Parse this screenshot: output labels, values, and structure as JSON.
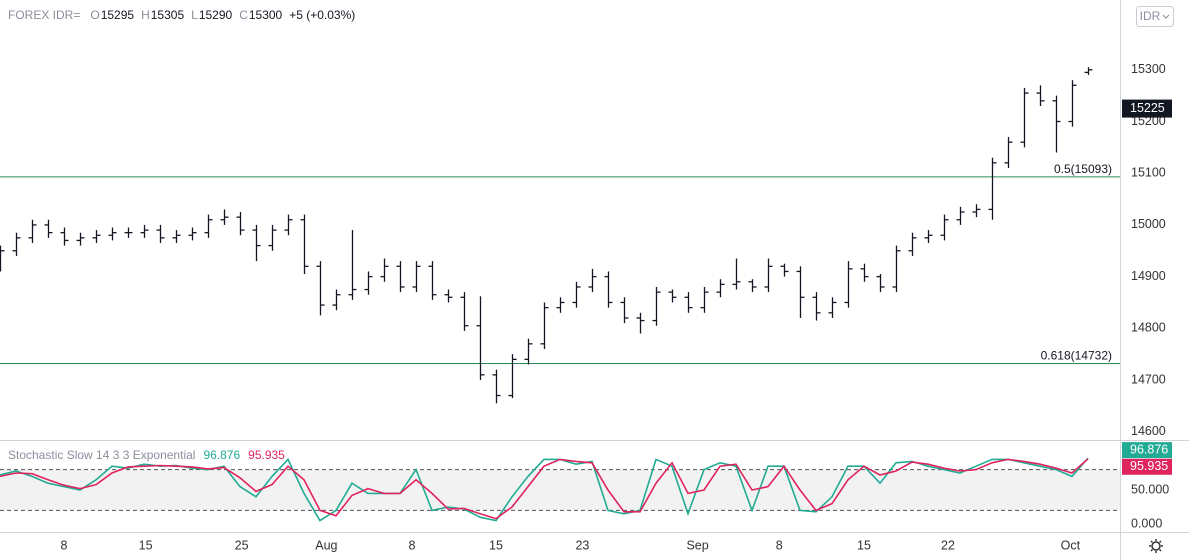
{
  "chart_data": [
    {
      "type": "ohlc",
      "title": "FOREX IDR=",
      "ohlc_labels": [
        {
          "label": "O",
          "value": 15295
        },
        {
          "label": "H",
          "value": 15305
        },
        {
          "label": "L",
          "value": 15290
        },
        {
          "label": "C",
          "value": 15300
        }
      ],
      "change": "+5 (+0.03%)",
      "color": "#131722",
      "xlim": [
        0,
        70
      ],
      "ylim": [
        14584,
        15435
      ],
      "yticks": [
        14600,
        14700,
        14800,
        14900,
        15000,
        15100,
        15200,
        15300
      ],
      "price_marker": 15225,
      "levels": [
        {
          "label": "0.5(15093)",
          "value": 15093,
          "color": "#2e8b57"
        },
        {
          "label": "0.618(14732)",
          "value": 14732,
          "color": "#2e8b57"
        }
      ],
      "open": [
        14940,
        14950,
        14975,
        15000,
        14985,
        14970,
        14975,
        14980,
        14985,
        14985,
        14990,
        14975,
        14980,
        14985,
        15010,
        15015,
        14990,
        14960,
        14990,
        15010,
        14920,
        14845,
        14865,
        14875,
        14900,
        14920,
        14880,
        14920,
        14865,
        14860,
        14805,
        14710,
        14670,
        14740,
        14770,
        14840,
        14850,
        14880,
        14900,
        14850,
        14820,
        14815,
        14870,
        14860,
        14840,
        14870,
        14885,
        14890,
        14880,
        14920,
        14910,
        14860,
        14830,
        14850,
        14915,
        14900,
        14880,
        14950,
        14975,
        14980,
        15010,
        15025,
        15030,
        15120,
        15160,
        15255,
        15240,
        15200,
        15295
      ],
      "high": [
        14960,
        14985,
        15010,
        15010,
        14995,
        14985,
        14990,
        14995,
        14995,
        15000,
        15000,
        14990,
        14995,
        15020,
        15030,
        15025,
        15000,
        15000,
        15020,
        15020,
        14930,
        14875,
        14990,
        14910,
        14935,
        14930,
        14930,
        14930,
        14875,
        14870,
        14862,
        14720,
        14750,
        14780,
        14850,
        14860,
        14890,
        14915,
        14910,
        14860,
        14830,
        14880,
        14875,
        14870,
        14880,
        14895,
        14935,
        14895,
        14935,
        14925,
        14920,
        14870,
        14860,
        14930,
        14925,
        14905,
        14960,
        14985,
        14990,
        15020,
        15035,
        15040,
        15130,
        15170,
        15265,
        15270,
        15250,
        15280,
        15305
      ],
      "low": [
        14910,
        14940,
        14965,
        14975,
        14960,
        14960,
        14965,
        14970,
        14975,
        14975,
        14965,
        14965,
        14970,
        14975,
        15000,
        14980,
        14930,
        14950,
        14980,
        14905,
        14825,
        14835,
        14855,
        14865,
        14890,
        14870,
        14870,
        14855,
        14850,
        14795,
        14700,
        14655,
        14665,
        14730,
        14760,
        14830,
        14840,
        14870,
        14840,
        14810,
        14790,
        14805,
        14850,
        14830,
        14830,
        14860,
        14875,
        14870,
        14870,
        14900,
        14820,
        14815,
        14820,
        14840,
        14890,
        14870,
        14870,
        14940,
        14965,
        14970,
        15000,
        15015,
        15010,
        15110,
        15150,
        15230,
        15140,
        15190,
        15290
      ],
      "close": [
        14950,
        14975,
        15000,
        14985,
        14970,
        14975,
        14980,
        14985,
        14985,
        14990,
        14975,
        14980,
        14985,
        15010,
        15015,
        14990,
        14960,
        14990,
        15010,
        14920,
        14845,
        14865,
        14875,
        14900,
        14920,
        14880,
        14920,
        14865,
        14860,
        14805,
        14710,
        14670,
        14740,
        14770,
        14840,
        14850,
        14880,
        14900,
        14850,
        14820,
        14815,
        14870,
        14860,
        14840,
        14870,
        14885,
        14890,
        14880,
        14920,
        14910,
        14860,
        14830,
        14850,
        14915,
        14900,
        14880,
        14950,
        14975,
        14980,
        15010,
        15025,
        15030,
        15120,
        15160,
        15255,
        15240,
        15200,
        15270,
        15300
      ]
    },
    {
      "type": "line",
      "title": "Stochastic Slow 14 3 3 Exponential",
      "xlim": [
        0,
        70
      ],
      "ylim": [
        -11.76,
        122.06
      ],
      "yticks": [
        {
          "value": 0,
          "label": "0.000"
        },
        {
          "value": 50,
          "label": "50.000"
        }
      ],
      "bands": [
        20,
        80
      ],
      "xticks": [
        {
          "value": 4,
          "label": "8"
        },
        {
          "value": 9.1,
          "label": "15"
        },
        {
          "value": 15.1,
          "label": "25"
        },
        {
          "value": 20.4,
          "label": "Aug"
        },
        {
          "value": 25.75,
          "label": "8"
        },
        {
          "value": 31,
          "label": "15"
        },
        {
          "value": 36.4,
          "label": "23"
        },
        {
          "value": 43.6,
          "label": "Sep"
        },
        {
          "value": 48.7,
          "label": "8"
        },
        {
          "value": 54,
          "label": "15"
        },
        {
          "value": 59.25,
          "label": "22"
        },
        {
          "value": 66.9,
          "label": "Oct"
        }
      ],
      "series": [
        {
          "color": "#22ab94",
          "values": [
            72,
            78,
            70,
            60,
            55,
            50,
            65,
            85,
            82,
            88,
            85,
            86,
            82,
            80,
            85,
            55,
            40,
            70,
            95,
            45,
            5,
            20,
            60,
            45,
            45,
            45,
            80,
            20,
            25,
            22,
            10,
            5,
            40,
            70,
            95,
            95,
            88,
            92,
            20,
            15,
            20,
            95,
            85,
            15,
            80,
            90,
            85,
            20,
            85,
            85,
            20,
            18,
            40,
            85,
            85,
            60,
            90,
            92,
            85,
            80,
            75,
            85,
            95,
            95,
            90,
            85,
            80,
            70,
            96.876
          ]
        },
        {
          "color": "#e0245e",
          "values": [
            70,
            75,
            74,
            65,
            57,
            52,
            58,
            75,
            84,
            85,
            86,
            85,
            84,
            81,
            83,
            68,
            48,
            58,
            85,
            65,
            20,
            12,
            42,
            52,
            45,
            45,
            65,
            45,
            22,
            23,
            15,
            8,
            25,
            55,
            85,
            95,
            92,
            90,
            50,
            18,
            18,
            60,
            90,
            45,
            50,
            85,
            88,
            50,
            55,
            85,
            50,
            20,
            30,
            65,
            85,
            72,
            78,
            91,
            88,
            82,
            78,
            80,
            90,
            95,
            92,
            88,
            82,
            75,
            95.935
          ]
        }
      ]
    }
  ],
  "ui": {
    "currency": "IDR"
  }
}
